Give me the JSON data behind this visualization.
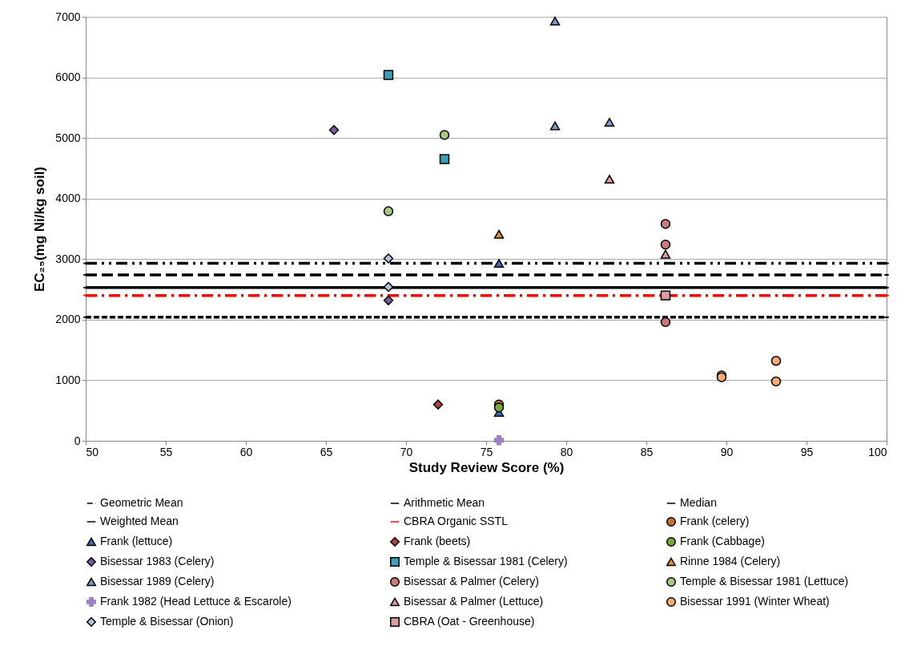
{
  "chart_data": {
    "type": "scatter",
    "xlabel": "Study Review Score (%)",
    "ylabel": "EC₂₅(mg Ni/kg soil)",
    "xlim": [
      50,
      100
    ],
    "xticks": [
      50,
      55,
      60,
      65,
      70,
      75,
      80,
      85,
      90,
      95,
      100
    ],
    "ylim": [
      0,
      7000
    ],
    "yticks": [
      0,
      1000,
      2000,
      3000,
      4000,
      5000,
      6000,
      7000
    ],
    "grid": "y",
    "legend": "bottom",
    "series": [
      {
        "name": "Geometric Mean",
        "type": "line",
        "color": "#000000",
        "line_style": "dashed",
        "x": [
          50,
          100
        ],
        "values": [
          2040,
          2040
        ]
      },
      {
        "name": "Arithmetic Mean",
        "type": "line",
        "color": "#000000",
        "line_style": "longdash",
        "x": [
          50,
          100
        ],
        "values": [
          2740,
          2740
        ]
      },
      {
        "name": "Median",
        "type": "line",
        "color": "#000000",
        "line_style": "solid",
        "x": [
          50,
          100
        ],
        "values": [
          2530,
          2530
        ]
      },
      {
        "name": "Weighted Mean",
        "type": "line",
        "color": "#000000",
        "line_style": "dashdotdot",
        "x": [
          50,
          100
        ],
        "values": [
          2930,
          2930
        ]
      },
      {
        "name": "CBRA Organic SSTL",
        "type": "line",
        "color": "#ff0000",
        "line_style": "dashdot",
        "x": [
          50,
          100
        ],
        "values": [
          2400,
          2400
        ]
      },
      {
        "name": "Frank (celery)",
        "marker": "circle",
        "color": "#c5742f",
        "x": [
          75.8
        ],
        "values": [
          600
        ]
      },
      {
        "name": "Frank (lettuce)",
        "marker": "triangle",
        "color": "#3c6eb4",
        "x": [
          75.8,
          75.8
        ],
        "values": [
          2930,
          470
        ]
      },
      {
        "name": "Frank (beets)",
        "marker": "diamond",
        "color": "#b5423f",
        "x": [
          72.0
        ],
        "values": [
          600
        ]
      },
      {
        "name": "Frank (Cabbage)",
        "marker": "circle",
        "color": "#77a83a",
        "x": [
          75.8
        ],
        "values": [
          550
        ]
      },
      {
        "name": "Bisessar 1983 (Celery)",
        "marker": "diamond",
        "color": "#7a5aa0",
        "x": [
          65.5,
          68.9
        ],
        "values": [
          5130,
          2320
        ]
      },
      {
        "name": "Temple & Bisessar 1981 (Celery)",
        "marker": "square",
        "color": "#3aa0b8",
        "x": [
          68.9,
          72.4
        ],
        "values": [
          6040,
          4650
        ]
      },
      {
        "name": "Rinne 1984 (Celery)",
        "marker": "triangle",
        "color": "#f08a30",
        "x": [
          75.8
        ],
        "values": [
          3410
        ]
      },
      {
        "name": "Bisessar 1989 (Celery)",
        "marker": "triangle",
        "color": "#7a9cd0",
        "x": [
          79.3,
          79.3,
          82.7
        ],
        "values": [
          6930,
          5200,
          5260
        ]
      },
      {
        "name": "Bisessar & Palmer (Celery)",
        "marker": "circle",
        "color": "#cc7a78",
        "x": [
          86.2,
          86.2,
          86.2
        ],
        "values": [
          3580,
          3240,
          1960
        ]
      },
      {
        "name": "Temple & Bisessar 1981 (Lettuce)",
        "marker": "circle",
        "color": "#a8c880",
        "x": [
          72.4,
          68.9
        ],
        "values": [
          5050,
          3790
        ]
      },
      {
        "name": "Frank 1982 (Head Lettuce & Escarole)",
        "marker": "cross",
        "color": "#9a80c0",
        "x": [
          75.8
        ],
        "values": [
          10
        ]
      },
      {
        "name": "Bisessar & Palmer (Lettuce)",
        "marker": "triangle",
        "color": "#e09a98",
        "x": [
          82.7,
          86.2
        ],
        "values": [
          4320,
          3080
        ]
      },
      {
        "name": "Bisessar 1991 (Winter Wheat)",
        "marker": "circle",
        "color": "#f8aa70",
        "x": [
          89.7,
          89.7,
          93.1,
          93.1
        ],
        "values": [
          1080,
          1050,
          1320,
          980
        ]
      },
      {
        "name": "Temple & Bisessar (Onion)",
        "marker": "diamond",
        "color": "#b0c4e0",
        "x": [
          68.9,
          68.9
        ],
        "values": [
          3010,
          2540
        ]
      },
      {
        "name": "CBRA (Oat - Greenhouse)",
        "marker": "square",
        "color": "#daa0a0",
        "x": [
          86.2
        ],
        "values": [
          2400
        ]
      }
    ]
  }
}
